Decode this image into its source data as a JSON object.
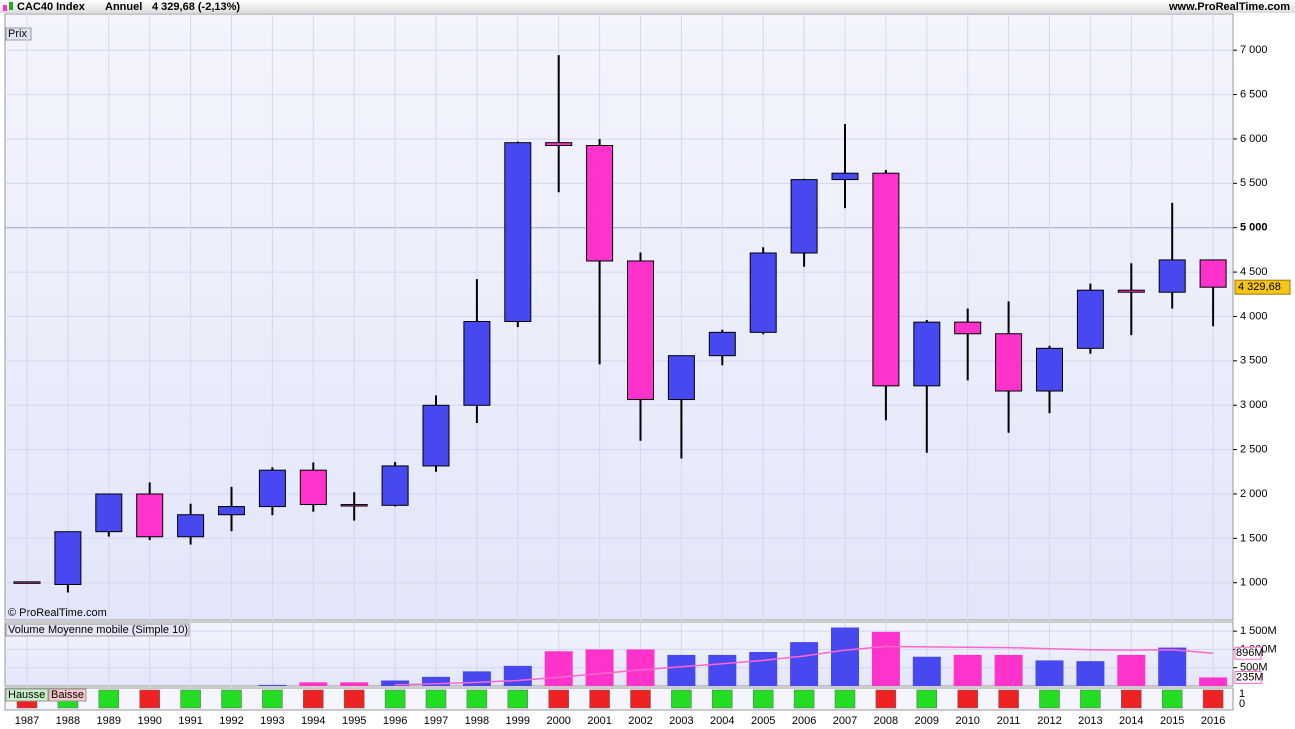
{
  "chart_data": [
    {
      "type": "candlestick",
      "title": "CAC40 Index",
      "period": "Annuel",
      "quote": "4 329,68 (-2,13%)",
      "source": "www.ProRealTime.com",
      "panel_label": "Prix",
      "watermark": "© ProRealTime.com",
      "categories": [
        "1987",
        "1988",
        "1989",
        "1990",
        "1991",
        "1992",
        "1993",
        "1994",
        "1995",
        "1996",
        "1997",
        "1998",
        "1999",
        "2000",
        "2001",
        "2002",
        "2003",
        "2004",
        "2005",
        "2006",
        "2007",
        "2008",
        "2009",
        "2010",
        "2011",
        "2012",
        "2013",
        "2014",
        "2015",
        "2016"
      ],
      "open": [
        1010,
        980,
        1575,
        2000,
        1518,
        1766,
        1858,
        2268,
        1881,
        1872,
        2316,
        2999,
        3943,
        5958,
        5926,
        4625,
        3064,
        3558,
        3821,
        4715,
        5542,
        5614,
        3218,
        3936,
        3805,
        3160,
        3641,
        4296,
        4273,
        4637
      ],
      "high": [
        1010,
        1575,
        2000,
        2130,
        1890,
        2080,
        2300,
        2355,
        2020,
        2360,
        3110,
        4420,
        5970,
        6944,
        6000,
        4720,
        3560,
        3850,
        4780,
        5550,
        6168,
        5650,
        3960,
        4090,
        4170,
        3670,
        4370,
        4600,
        5280,
        4637
      ],
      "low": [
        1000,
        890,
        1520,
        1480,
        1430,
        1580,
        1760,
        1800,
        1700,
        1860,
        2250,
        2800,
        3880,
        5400,
        3460,
        2600,
        2400,
        3450,
        3800,
        4560,
        5220,
        2830,
        2465,
        3280,
        2690,
        2910,
        3580,
        3790,
        4090,
        3890
      ],
      "close": [
        1000,
        1575,
        2000,
        1518,
        1766,
        1858,
        2268,
        1881,
        1872,
        2316,
        2999,
        3943,
        5958,
        5926,
        4625,
        3064,
        3558,
        3821,
        4715,
        5542,
        5614,
        3218,
        3936,
        3805,
        3160,
        3641,
        4296,
        4273,
        4637,
        4329.68
      ],
      "value_labels": [
        null,
        null,
        null,
        null,
        null,
        null,
        null,
        null,
        null,
        null,
        null,
        null,
        null,
        null,
        null,
        null,
        null,
        null,
        null,
        null,
        null,
        null,
        null,
        null,
        null,
        null,
        null,
        null,
        null,
        "4 329,68"
      ],
      "up_color": "#4848f0",
      "down_color": "#ff33cc",
      "direction_labels": [
        "Hausse",
        "Baisse"
      ],
      "direction_colors": [
        "#22dd22",
        "#ee2222"
      ],
      "direction_ticks": [
        1,
        0
      ],
      "ylim": [
        580,
        7250
      ],
      "yticks": [
        {
          "value": 1000,
          "label": "1 000"
        },
        {
          "value": 1500,
          "label": "1 500"
        },
        {
          "value": 2000,
          "label": "2 000"
        },
        {
          "value": 2500,
          "label": "2 500"
        },
        {
          "value": 3000,
          "label": "3 000"
        },
        {
          "value": 3500,
          "label": "3 500"
        },
        {
          "value": 4000,
          "label": "4 000"
        },
        {
          "value": 4500,
          "label": "4 500"
        },
        {
          "value": 5000,
          "label": "5 000"
        },
        {
          "value": 5500,
          "label": "5 500"
        },
        {
          "value": 6000,
          "label": "6 000"
        },
        {
          "value": 6500,
          "label": "6 500"
        },
        {
          "value": 7000,
          "label": "7 000"
        }
      ],
      "bold_tick": 5000,
      "grid": true
    },
    {
      "type": "bar",
      "series": [
        {
          "name": "Volume",
          "values": [
            null,
            null,
            null,
            null,
            null,
            null,
            30,
            100,
            100,
            150,
            250,
            400,
            550,
            950,
            1000,
            1000,
            850,
            850,
            930,
            1200,
            1600,
            1480,
            800,
            850,
            850,
            700,
            680,
            850,
            1050,
            235
          ],
          "value_labels": [
            null,
            null,
            null,
            null,
            null,
            null,
            null,
            null,
            null,
            null,
            null,
            null,
            null,
            null,
            null,
            null,
            null,
            null,
            null,
            null,
            null,
            null,
            null,
            null,
            null,
            null,
            null,
            null,
            null,
            "235M"
          ]
        },
        {
          "name": "Moyenne mobile (Simple 10)",
          "type": "line",
          "color": "#ff66cc",
          "values": [
            null,
            null,
            null,
            null,
            null,
            null,
            null,
            null,
            null,
            30,
            60,
            100,
            150,
            240,
            340,
            440,
            525,
            610,
            700,
            820,
            980,
            1080,
            1070,
            1060,
            1050,
            1020,
            990,
            980,
            990,
            896
          ],
          "value_labels": [
            null,
            null,
            null,
            null,
            null,
            null,
            null,
            null,
            null,
            null,
            null,
            null,
            null,
            null,
            null,
            null,
            null,
            null,
            null,
            null,
            null,
            null,
            null,
            null,
            null,
            null,
            null,
            null,
            null,
            "896M"
          ]
        }
      ],
      "ylim": [
        0,
        1750
      ],
      "yticks": [
        {
          "value": 1500,
          "label": "1 500M"
        },
        {
          "value": 1000,
          "label": "1 000M"
        },
        {
          "value": 500,
          "label": "500M"
        }
      ]
    }
  ]
}
